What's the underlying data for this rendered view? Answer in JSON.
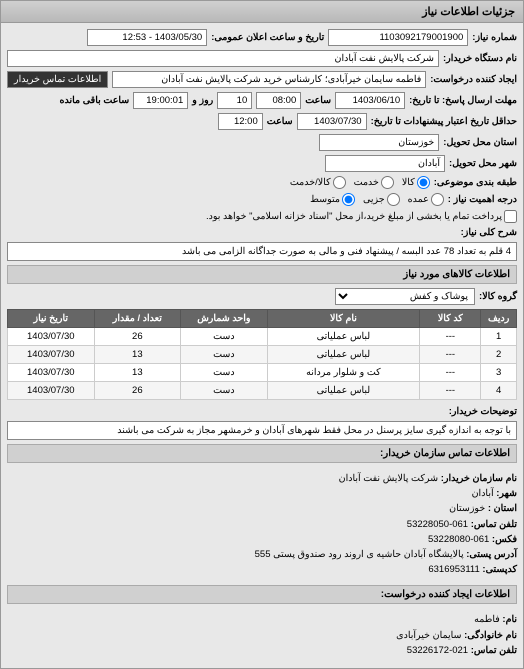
{
  "header": {
    "title": "جزئیات اطلاعات نیاز"
  },
  "fields": {
    "request_no_lbl": "شماره نیاز:",
    "request_no": "1103092179001900",
    "announce_lbl": "تاریخ و ساعت اعلان عمومی:",
    "announce": "1403/05/30 - 12:53",
    "buyer_name_lbl": "نام دستگاه خریدار:",
    "buyer_name": "شرکت پالایش نفت آبادان",
    "requester_lbl": "ایجاد کننده درخواست:",
    "requester": "فاطمه سایمان خیرآبادی؛ کارشناس خرید شرکت پالایش نفت آبادان",
    "buyer_contact_lbl": "اطلاعات تماس خریدار",
    "deadline_lbl": "مهلت ارسال پاسخ: تا تاریخ:",
    "deadline_date": "1403/06/10",
    "time_lbl": "ساعت",
    "deadline_time": "08:00",
    "and_lbl": "و",
    "days_remain": "10",
    "days_lbl": "روز و",
    "time_remain": "19:00:01",
    "remain_lbl": "ساعت باقی مانده",
    "credit_lbl": "حداقل تاریخ اعتبار پیشنهادات تا تاریخ:",
    "credit_date": "1403/07/30",
    "credit_time_lbl": "ساعت",
    "credit_time": "12:00",
    "province_lbl": "استان محل تحویل:",
    "province": "خوزستان",
    "city_lbl": "شهر محل تحویل:",
    "city": "آبادان",
    "budget_lbl": "طبقه بندی موضوعی:",
    "commodity": "کالا",
    "service": "خدمت",
    "both": "کالا/خدمت",
    "priority_lbl": "درجه اهمیت نیاز :",
    "low": "متوسط",
    "mid": "جزیی",
    "high": "عمده",
    "payment_note": "پرداخت تمام یا بخشی از مبلغ خرید،از محل \"اسناد خزانه اسلامی\" خواهد بود.",
    "desc_lbl": "شرح کلی نیاز:",
    "desc": "4 قلم به تعداد 78 عدد البسه / پیشنهاد فنی و مالی به صورت جداگانه الزامی می باشد",
    "goods_title": "اطلاعات کالاهای مورد نیاز",
    "group_lbl": "گروه کالا:",
    "group": "پوشاک و کفش",
    "buyer_note_lbl": "توضیحات خریدار:",
    "buyer_note": "با توجه به اندازه گیری سایز پرسنل در محل فقط شهرهای آبادان و خرمشهر مجاز به شرکت می باشند",
    "org_title": "اطلاعات تماس سازمان خریدار:",
    "org_name_lbl": "نام سازمان خریدار:",
    "org_name": "شرکت پالایش نفت آبادان",
    "org_city_lbl": "شهر:",
    "org_city": "آبادان",
    "org_province_lbl": "استان :",
    "org_province": "خوزستان",
    "org_phone_lbl": "تلفن تماس:",
    "org_phone": "061-53228050",
    "org_fax_lbl": "فکس:",
    "org_fax": "061-53228080",
    "org_addr_lbl": "آدرس پستی:",
    "org_addr": "پالایشگاه آبادان حاشیه ی اروند رود صندوق پستی 555",
    "org_zip_lbl": "کدپستی:",
    "org_zip": "6316953111",
    "creator_title": "اطلاعات ایجاد کننده درخواست:",
    "creator_name_lbl": "نام:",
    "creator_name": "فاطمه",
    "creator_family_lbl": "نام خانوادگی:",
    "creator_family": "سایمان خیرآبادی",
    "creator_phone_lbl": "تلفن تماس:",
    "creator_phone": "021-53226172"
  },
  "table": {
    "columns": [
      "ردیف",
      "کد کالا",
      "نام کالا",
      "واحد شمارش",
      "تعداد / مقدار",
      "تاریخ نیاز"
    ],
    "rows": [
      [
        "1",
        "---",
        "لباس عملیاتی",
        "دست",
        "26",
        "1403/07/30"
      ],
      [
        "2",
        "---",
        "لباس عملیاتی",
        "دست",
        "13",
        "1403/07/30"
      ],
      [
        "3",
        "---",
        "کت و شلوار مردانه",
        "دست",
        "13",
        "1403/07/30"
      ],
      [
        "4",
        "---",
        "لباس عملیاتی",
        "دست",
        "26",
        "1403/07/30"
      ]
    ],
    "col_widths": [
      "7%",
      "12%",
      "30%",
      "17%",
      "17%",
      "17%"
    ]
  }
}
